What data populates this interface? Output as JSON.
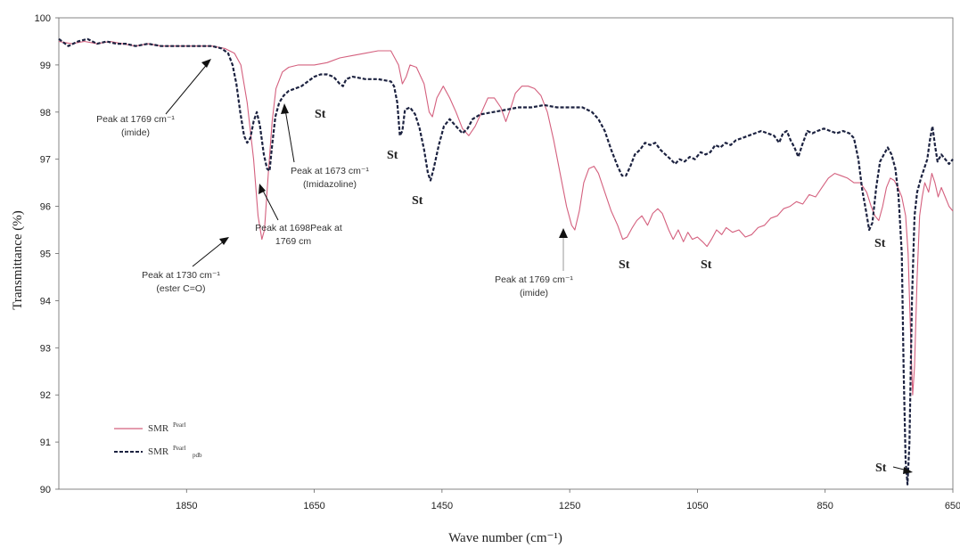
{
  "chart_data": {
    "type": "line",
    "xlabel": "Wave number (cm⁻¹)",
    "ylabel": "Transmittance (%)",
    "xlim": [
      2050,
      650
    ],
    "ylim": [
      90,
      100
    ],
    "x_ticks": [
      "1850",
      "1650",
      "1450",
      "1250",
      "1050",
      "850",
      "650"
    ],
    "y_ticks": [
      "90",
      "91",
      "92",
      "93",
      "94",
      "95",
      "96",
      "97",
      "98",
      "99",
      "100"
    ],
    "grid": false,
    "legend_position": "bottom-left",
    "series": [
      {
        "name": "SMR",
        "color": "#d4607e",
        "style": "solid",
        "points": [
          [
            2050,
            99.5
          ],
          [
            2030,
            99.45
          ],
          [
            2010,
            99.5
          ],
          [
            1990,
            99.45
          ],
          [
            1970,
            99.5
          ],
          [
            1950,
            99.45
          ],
          [
            1930,
            99.4
          ],
          [
            1910,
            99.45
          ],
          [
            1890,
            99.4
          ],
          [
            1870,
            99.4
          ],
          [
            1850,
            99.4
          ],
          [
            1830,
            99.4
          ],
          [
            1810,
            99.4
          ],
          [
            1790,
            99.35
          ],
          [
            1775,
            99.25
          ],
          [
            1765,
            99.0
          ],
          [
            1755,
            98.2
          ],
          [
            1745,
            97.0
          ],
          [
            1738,
            95.8
          ],
          [
            1732,
            95.3
          ],
          [
            1728,
            95.5
          ],
          [
            1722,
            96.7
          ],
          [
            1716,
            97.8
          ],
          [
            1710,
            98.5
          ],
          [
            1700,
            98.85
          ],
          [
            1690,
            98.95
          ],
          [
            1675,
            99.0
          ],
          [
            1650,
            99.0
          ],
          [
            1630,
            99.05
          ],
          [
            1610,
            99.15
          ],
          [
            1590,
            99.2
          ],
          [
            1570,
            99.25
          ],
          [
            1550,
            99.3
          ],
          [
            1530,
            99.3
          ],
          [
            1518,
            99.0
          ],
          [
            1512,
            98.6
          ],
          [
            1506,
            98.75
          ],
          [
            1500,
            99.0
          ],
          [
            1490,
            98.95
          ],
          [
            1478,
            98.6
          ],
          [
            1470,
            98.0
          ],
          [
            1465,
            97.9
          ],
          [
            1458,
            98.3
          ],
          [
            1448,
            98.55
          ],
          [
            1438,
            98.3
          ],
          [
            1428,
            98.0
          ],
          [
            1418,
            97.65
          ],
          [
            1408,
            97.5
          ],
          [
            1398,
            97.7
          ],
          [
            1388,
            98.0
          ],
          [
            1378,
            98.3
          ],
          [
            1368,
            98.3
          ],
          [
            1358,
            98.1
          ],
          [
            1350,
            97.8
          ],
          [
            1342,
            98.1
          ],
          [
            1335,
            98.4
          ],
          [
            1325,
            98.55
          ],
          [
            1315,
            98.55
          ],
          [
            1305,
            98.5
          ],
          [
            1295,
            98.35
          ],
          [
            1285,
            98.0
          ],
          [
            1275,
            97.4
          ],
          [
            1265,
            96.7
          ],
          [
            1255,
            96.0
          ],
          [
            1247,
            95.6
          ],
          [
            1242,
            95.5
          ],
          [
            1235,
            95.9
          ],
          [
            1228,
            96.5
          ],
          [
            1220,
            96.8
          ],
          [
            1212,
            96.85
          ],
          [
            1205,
            96.7
          ],
          [
            1195,
            96.3
          ],
          [
            1185,
            95.9
          ],
          [
            1175,
            95.6
          ],
          [
            1167,
            95.3
          ],
          [
            1160,
            95.35
          ],
          [
            1152,
            95.55
          ],
          [
            1145,
            95.7
          ],
          [
            1137,
            95.8
          ],
          [
            1128,
            95.6
          ],
          [
            1120,
            95.85
          ],
          [
            1112,
            95.95
          ],
          [
            1105,
            95.85
          ],
          [
            1095,
            95.5
          ],
          [
            1088,
            95.3
          ],
          [
            1080,
            95.5
          ],
          [
            1072,
            95.25
          ],
          [
            1065,
            95.45
          ],
          [
            1058,
            95.3
          ],
          [
            1050,
            95.35
          ],
          [
            1042,
            95.25
          ],
          [
            1035,
            95.15
          ],
          [
            1028,
            95.3
          ],
          [
            1020,
            95.5
          ],
          [
            1012,
            95.4
          ],
          [
            1005,
            95.55
          ],
          [
            995,
            95.45
          ],
          [
            985,
            95.5
          ],
          [
            975,
            95.35
          ],
          [
            965,
            95.4
          ],
          [
            955,
            95.55
          ],
          [
            945,
            95.6
          ],
          [
            935,
            95.75
          ],
          [
            925,
            95.8
          ],
          [
            915,
            95.95
          ],
          [
            905,
            96.0
          ],
          [
            895,
            96.1
          ],
          [
            885,
            96.05
          ],
          [
            875,
            96.25
          ],
          [
            865,
            96.2
          ],
          [
            855,
            96.4
          ],
          [
            845,
            96.6
          ],
          [
            835,
            96.7
          ],
          [
            825,
            96.65
          ],
          [
            815,
            96.6
          ],
          [
            805,
            96.5
          ],
          [
            795,
            96.5
          ],
          [
            785,
            96.3
          ],
          [
            778,
            96.0
          ],
          [
            772,
            95.8
          ],
          [
            766,
            95.7
          ],
          [
            760,
            96.0
          ],
          [
            754,
            96.4
          ],
          [
            748,
            96.6
          ],
          [
            742,
            96.55
          ],
          [
            736,
            96.4
          ],
          [
            730,
            96.2
          ],
          [
            724,
            95.8
          ],
          [
            720,
            95.0
          ],
          [
            716,
            93.2
          ],
          [
            713,
            92.0
          ],
          [
            710,
            92.6
          ],
          [
            706,
            94.5
          ],
          [
            702,
            95.8
          ],
          [
            698,
            96.2
          ],
          [
            694,
            96.5
          ],
          [
            688,
            96.3
          ],
          [
            683,
            96.7
          ],
          [
            678,
            96.5
          ],
          [
            673,
            96.2
          ],
          [
            668,
            96.4
          ],
          [
            662,
            96.2
          ],
          [
            656,
            96.0
          ],
          [
            650,
            95.9
          ]
        ]
      },
      {
        "name": "SMR",
        "color": "#1c2240",
        "style": "dashed",
        "points": [
          [
            2050,
            99.55
          ],
          [
            2035,
            99.4
          ],
          [
            2020,
            99.5
          ],
          [
            2005,
            99.55
          ],
          [
            1990,
            99.45
          ],
          [
            1975,
            99.5
          ],
          [
            1960,
            99.45
          ],
          [
            1945,
            99.45
          ],
          [
            1930,
            99.4
          ],
          [
            1910,
            99.45
          ],
          [
            1890,
            99.4
          ],
          [
            1870,
            99.4
          ],
          [
            1850,
            99.4
          ],
          [
            1830,
            99.4
          ],
          [
            1810,
            99.4
          ],
          [
            1795,
            99.35
          ],
          [
            1785,
            99.25
          ],
          [
            1778,
            99.0
          ],
          [
            1772,
            98.6
          ],
          [
            1766,
            98.0
          ],
          [
            1760,
            97.5
          ],
          [
            1755,
            97.35
          ],
          [
            1750,
            97.45
          ],
          [
            1745,
            97.8
          ],
          [
            1740,
            98.0
          ],
          [
            1735,
            97.7
          ],
          [
            1729,
            97.1
          ],
          [
            1724,
            96.8
          ],
          [
            1720,
            96.75
          ],
          [
            1716,
            97.3
          ],
          [
            1711,
            97.9
          ],
          [
            1705,
            98.2
          ],
          [
            1698,
            98.35
          ],
          [
            1690,
            98.45
          ],
          [
            1680,
            98.5
          ],
          [
            1670,
            98.55
          ],
          [
            1660,
            98.65
          ],
          [
            1650,
            98.75
          ],
          [
            1640,
            98.8
          ],
          [
            1630,
            98.8
          ],
          [
            1620,
            98.75
          ],
          [
            1610,
            98.6
          ],
          [
            1605,
            98.55
          ],
          [
            1600,
            98.7
          ],
          [
            1590,
            98.75
          ],
          [
            1570,
            98.7
          ],
          [
            1550,
            98.7
          ],
          [
            1530,
            98.65
          ],
          [
            1525,
            98.55
          ],
          [
            1520,
            98.2
          ],
          [
            1516,
            97.5
          ],
          [
            1512,
            97.6
          ],
          [
            1508,
            98.05
          ],
          [
            1500,
            98.1
          ],
          [
            1492,
            97.95
          ],
          [
            1485,
            97.65
          ],
          [
            1478,
            97.2
          ],
          [
            1472,
            96.7
          ],
          [
            1468,
            96.55
          ],
          [
            1463,
            96.8
          ],
          [
            1455,
            97.3
          ],
          [
            1447,
            97.7
          ],
          [
            1438,
            97.85
          ],
          [
            1428,
            97.7
          ],
          [
            1418,
            97.55
          ],
          [
            1410,
            97.65
          ],
          [
            1402,
            97.85
          ],
          [
            1390,
            97.95
          ],
          [
            1370,
            98.0
          ],
          [
            1350,
            98.05
          ],
          [
            1330,
            98.1
          ],
          [
            1310,
            98.1
          ],
          [
            1290,
            98.15
          ],
          [
            1270,
            98.1
          ],
          [
            1250,
            98.1
          ],
          [
            1230,
            98.1
          ],
          [
            1215,
            98.0
          ],
          [
            1205,
            97.85
          ],
          [
            1195,
            97.6
          ],
          [
            1185,
            97.2
          ],
          [
            1175,
            96.85
          ],
          [
            1168,
            96.65
          ],
          [
            1162,
            96.65
          ],
          [
            1155,
            96.85
          ],
          [
            1148,
            97.1
          ],
          [
            1140,
            97.2
          ],
          [
            1132,
            97.35
          ],
          [
            1124,
            97.3
          ],
          [
            1116,
            97.35
          ],
          [
            1108,
            97.2
          ],
          [
            1100,
            97.1
          ],
          [
            1092,
            97.0
          ],
          [
            1085,
            96.9
          ],
          [
            1078,
            97.0
          ],
          [
            1070,
            96.95
          ],
          [
            1062,
            97.05
          ],
          [
            1054,
            97.0
          ],
          [
            1045,
            97.15
          ],
          [
            1037,
            97.1
          ],
          [
            1030,
            97.15
          ],
          [
            1022,
            97.3
          ],
          [
            1014,
            97.25
          ],
          [
            1006,
            97.35
          ],
          [
            998,
            97.3
          ],
          [
            990,
            97.4
          ],
          [
            980,
            97.45
          ],
          [
            970,
            97.5
          ],
          [
            960,
            97.55
          ],
          [
            950,
            97.6
          ],
          [
            940,
            97.55
          ],
          [
            930,
            97.5
          ],
          [
            922,
            97.35
          ],
          [
            916,
            97.55
          ],
          [
            910,
            97.6
          ],
          [
            904,
            97.4
          ],
          [
            898,
            97.25
          ],
          [
            892,
            97.05
          ],
          [
            886,
            97.3
          ],
          [
            878,
            97.6
          ],
          [
            870,
            97.55
          ],
          [
            862,
            97.6
          ],
          [
            852,
            97.65
          ],
          [
            842,
            97.6
          ],
          [
            832,
            97.55
          ],
          [
            822,
            97.6
          ],
          [
            812,
            97.55
          ],
          [
            805,
            97.45
          ],
          [
            798,
            97.0
          ],
          [
            792,
            96.35
          ],
          [
            786,
            95.9
          ],
          [
            781,
            95.5
          ],
          [
            776,
            95.65
          ],
          [
            770,
            96.4
          ],
          [
            764,
            96.95
          ],
          [
            758,
            97.1
          ],
          [
            752,
            97.25
          ],
          [
            746,
            97.1
          ],
          [
            740,
            96.8
          ],
          [
            735,
            96.2
          ],
          [
            730,
            95.0
          ],
          [
            727,
            92.5
          ],
          [
            724,
            90.6
          ],
          [
            721,
            90.1
          ],
          [
            718,
            91.0
          ],
          [
            714,
            94.0
          ],
          [
            710,
            95.8
          ],
          [
            706,
            96.3
          ],
          [
            700,
            96.6
          ],
          [
            695,
            96.8
          ],
          [
            690,
            97.0
          ],
          [
            686,
            97.4
          ],
          [
            682,
            97.7
          ],
          [
            678,
            97.3
          ],
          [
            674,
            96.95
          ],
          [
            668,
            97.1
          ],
          [
            662,
            97.0
          ],
          [
            656,
            96.9
          ],
          [
            650,
            97.0
          ]
        ]
      }
    ],
    "annotations": [
      {
        "id": "a1769",
        "lines": [
          "Peak at 1769 cm⁻¹",
          "(imide)"
        ]
      },
      {
        "id": "a1730",
        "lines": [
          "Peak at 1730 cm⁻¹",
          "(ester C=O)"
        ]
      },
      {
        "id": "a1698",
        "lines": [
          "Peak at 1698Peak at",
          "1769 cm"
        ]
      },
      {
        "id": "a1673",
        "lines": [
          "Peak at 1673 cm⁻¹",
          "(Imidazoline)"
        ]
      },
      {
        "id": "a1769b",
        "lines": [
          "Peak at 1769 cm⁻¹",
          "(imide)"
        ]
      }
    ],
    "st_labels": [
      "St",
      "St",
      "St",
      "St",
      "St",
      "St",
      "St"
    ]
  },
  "legend": {
    "entries": [
      {
        "label": "SMR",
        "sup": "Pearl"
      },
      {
        "label": "SMR",
        "sup": "Pearl",
        "sub": "pdb"
      }
    ]
  }
}
